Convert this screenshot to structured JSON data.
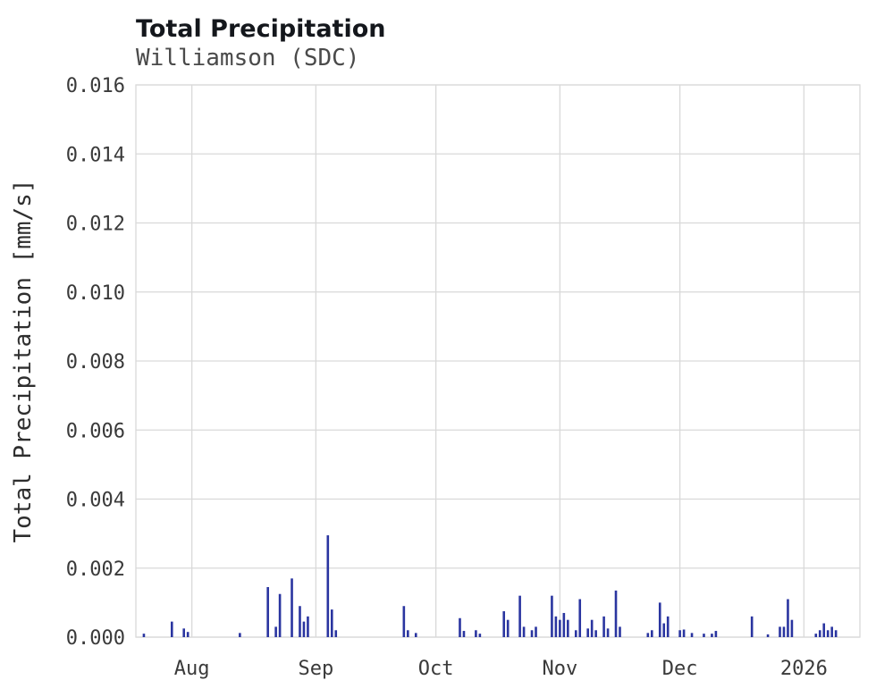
{
  "header": {
    "title": "Total Precipitation",
    "subtitle": "Williamson (SDC)"
  },
  "chart_data": {
    "type": "bar",
    "title": "Total Precipitation",
    "subtitle": "Williamson (SDC)",
    "xlabel": "",
    "ylabel": "Total Precipitation [mm/s]",
    "ylim": [
      0,
      0.016
    ],
    "grid": true,
    "legend": "none",
    "bar_color": "#2a35a0",
    "x_range": [
      "2025-07-18",
      "2026-01-15"
    ],
    "ytick_values": [
      0.0,
      0.002,
      0.004,
      0.006,
      0.008,
      0.01,
      0.012,
      0.014,
      0.016
    ],
    "ytick_labels": [
      "0.000",
      "0.002",
      "0.004",
      "0.006",
      "0.008",
      "0.010",
      "0.012",
      "0.014",
      "0.016"
    ],
    "xticks": [
      {
        "date": "2025-08-01",
        "label": "Aug"
      },
      {
        "date": "2025-09-01",
        "label": "Sep"
      },
      {
        "date": "2025-10-01",
        "label": "Oct"
      },
      {
        "date": "2025-11-01",
        "label": "Nov"
      },
      {
        "date": "2025-12-01",
        "label": "Dec"
      },
      {
        "date": "2026-01-01",
        "label": "2026"
      }
    ],
    "points": [
      [
        "2025-07-20",
        0.0001
      ],
      [
        "2025-07-27",
        0.00045
      ],
      [
        "2025-07-30",
        0.00025
      ],
      [
        "2025-07-31",
        0.00015
      ],
      [
        "2025-08-13",
        0.00012
      ],
      [
        "2025-08-20",
        0.00145
      ],
      [
        "2025-08-22",
        0.0003
      ],
      [
        "2025-08-23",
        0.00125
      ],
      [
        "2025-08-26",
        0.0017
      ],
      [
        "2025-08-28",
        0.0009
      ],
      [
        "2025-08-29",
        0.00045
      ],
      [
        "2025-08-30",
        0.0006
      ],
      [
        "2025-09-04",
        0.00295
      ],
      [
        "2025-09-05",
        0.0008
      ],
      [
        "2025-09-06",
        0.0002
      ],
      [
        "2025-09-23",
        0.0009
      ],
      [
        "2025-09-24",
        0.0002
      ],
      [
        "2025-09-26",
        0.00012
      ],
      [
        "2025-10-07",
        0.00055
      ],
      [
        "2025-10-08",
        0.00018
      ],
      [
        "2025-10-11",
        0.0002
      ],
      [
        "2025-10-12",
        0.0001
      ],
      [
        "2025-10-18",
        0.00075
      ],
      [
        "2025-10-19",
        0.0005
      ],
      [
        "2025-10-22",
        0.0012
      ],
      [
        "2025-10-23",
        0.0003
      ],
      [
        "2025-10-25",
        0.0002
      ],
      [
        "2025-10-26",
        0.0003
      ],
      [
        "2025-10-30",
        0.0012
      ],
      [
        "2025-10-31",
        0.0006
      ],
      [
        "2025-11-01",
        0.0005
      ],
      [
        "2025-11-02",
        0.0007
      ],
      [
        "2025-11-03",
        0.0005
      ],
      [
        "2025-11-05",
        0.0002
      ],
      [
        "2025-11-06",
        0.0011
      ],
      [
        "2025-11-08",
        0.00025
      ],
      [
        "2025-11-09",
        0.0005
      ],
      [
        "2025-11-10",
        0.0002
      ],
      [
        "2025-11-12",
        0.0006
      ],
      [
        "2025-11-13",
        0.00025
      ],
      [
        "2025-11-15",
        0.00135
      ],
      [
        "2025-11-16",
        0.0003
      ],
      [
        "2025-11-23",
        0.00012
      ],
      [
        "2025-11-24",
        0.0002
      ],
      [
        "2025-11-26",
        0.001
      ],
      [
        "2025-11-27",
        0.0004
      ],
      [
        "2025-11-28",
        0.0006
      ],
      [
        "2025-12-01",
        0.0002
      ],
      [
        "2025-12-02",
        0.00022
      ],
      [
        "2025-12-04",
        0.00012
      ],
      [
        "2025-12-07",
        0.0001
      ],
      [
        "2025-12-09",
        0.0001
      ],
      [
        "2025-12-10",
        0.00018
      ],
      [
        "2025-12-19",
        0.0006
      ],
      [
        "2025-12-23",
        8e-05
      ],
      [
        "2025-12-26",
        0.0003
      ],
      [
        "2025-12-27",
        0.0003
      ],
      [
        "2025-12-28",
        0.0011
      ],
      [
        "2025-12-29",
        0.0005
      ],
      [
        "2026-01-04",
        0.0001
      ],
      [
        "2026-01-05",
        0.0002
      ],
      [
        "2026-01-06",
        0.0004
      ],
      [
        "2026-01-07",
        0.0002
      ],
      [
        "2026-01-08",
        0.0003
      ],
      [
        "2026-01-09",
        0.0002
      ]
    ]
  }
}
